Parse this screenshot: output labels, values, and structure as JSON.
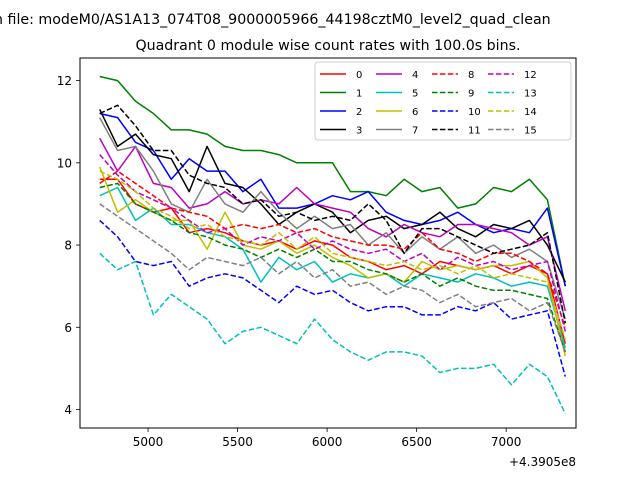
{
  "figure": {
    "suptitle": "n file: modeM0/AS1A13_074T08_9000005966_44198cztM0_level2_quad_clean",
    "title": "Quadrant 0 module wise count rates with 100.0s bins.",
    "offset_label": "+4.3905e8"
  },
  "chart_data": {
    "type": "line",
    "title": "Quadrant 0 module wise count rates with 100.0s bins.",
    "xlabel": "",
    "ylabel": "",
    "x_offset_text": "+4.3905e8",
    "xlim": [
      4620,
      7390
    ],
    "ylim": [
      3.55,
      12.55
    ],
    "xticks": [
      5000,
      5500,
      6000,
      6500,
      7000
    ],
    "yticks": [
      4,
      6,
      8,
      10,
      12
    ],
    "grid": false,
    "legend_position": "top-right",
    "legend_columns": 4,
    "x": [
      4730,
      4830,
      4930,
      5030,
      5130,
      5230,
      5330,
      5430,
      5530,
      5630,
      5730,
      5830,
      5930,
      6030,
      6130,
      6230,
      6330,
      6430,
      6530,
      6630,
      6730,
      6830,
      6930,
      7030,
      7130,
      7230,
      7330
    ],
    "series": [
      {
        "name": "0",
        "color": "#ff0000",
        "dash": "solid",
        "values": [
          9.6,
          9.6,
          9.0,
          8.8,
          8.9,
          8.3,
          8.4,
          8.3,
          8.1,
          8.0,
          8.1,
          7.9,
          8.1,
          8.0,
          7.7,
          7.6,
          7.4,
          7.5,
          7.3,
          7.6,
          7.5,
          7.4,
          7.5,
          7.3,
          7.5,
          7.3,
          5.6
        ]
      },
      {
        "name": "1",
        "color": "#008000",
        "dash": "solid",
        "values": [
          12.1,
          12.0,
          11.5,
          11.2,
          10.8,
          10.8,
          10.7,
          10.4,
          10.3,
          10.3,
          10.2,
          10.0,
          10.0,
          10.0,
          9.3,
          9.3,
          9.2,
          9.6,
          9.3,
          9.4,
          8.9,
          9.0,
          9.4,
          9.3,
          9.6,
          9.1,
          7.0
        ]
      },
      {
        "name": "2",
        "color": "#0000ff",
        "dash": "solid",
        "values": [
          11.2,
          11.1,
          10.5,
          10.3,
          9.6,
          10.1,
          9.8,
          9.8,
          9.3,
          9.6,
          8.9,
          8.9,
          9.0,
          9.2,
          9.1,
          9.3,
          8.8,
          8.6,
          8.5,
          8.6,
          8.8,
          8.5,
          8.3,
          8.4,
          8.3,
          8.9,
          7.0
        ]
      },
      {
        "name": "3",
        "color": "#000000",
        "dash": "solid",
        "values": [
          11.3,
          10.4,
          10.7,
          10.2,
          10.1,
          9.3,
          10.4,
          9.5,
          9.4,
          9.0,
          8.5,
          8.8,
          9.0,
          8.8,
          8.3,
          8.6,
          8.7,
          8.4,
          8.5,
          8.8,
          8.4,
          8.2,
          8.5,
          8.4,
          8.6,
          8.0,
          7.1
        ]
      },
      {
        "name": "4",
        "color": "#bf00bf",
        "dash": "solid",
        "values": [
          10.6,
          9.8,
          10.4,
          9.5,
          9.4,
          8.9,
          9.0,
          9.3,
          9.0,
          9.1,
          9.0,
          9.4,
          9.0,
          8.9,
          8.8,
          8.4,
          8.2,
          8.5,
          8.3,
          8.2,
          8.5,
          8.5,
          8.4,
          8.3,
          8.0,
          8.2,
          6.4
        ]
      },
      {
        "name": "5",
        "color": "#00bfbf",
        "dash": "solid",
        "values": [
          9.2,
          9.4,
          8.6,
          8.9,
          8.5,
          8.5,
          8.3,
          8.2,
          7.9,
          7.1,
          7.7,
          7.4,
          7.6,
          7.1,
          7.3,
          7.2,
          7.3,
          7.0,
          7.3,
          7.2,
          7.1,
          7.3,
          7.2,
          7.0,
          7.1,
          7.0,
          5.5
        ]
      },
      {
        "name": "6",
        "color": "#bfbf00",
        "dash": "solid",
        "values": [
          9.9,
          8.8,
          9.1,
          8.8,
          8.6,
          8.6,
          7.9,
          8.8,
          8.0,
          7.9,
          8.1,
          7.8,
          8.0,
          7.7,
          7.5,
          7.2,
          7.3,
          7.1,
          7.6,
          7.4,
          7.5,
          7.4,
          7.5,
          7.5,
          7.6,
          7.2,
          5.3
        ]
      },
      {
        "name": "7",
        "color": "#808080",
        "dash": "solid",
        "values": [
          11.1,
          10.3,
          10.4,
          9.8,
          9.0,
          8.8,
          9.6,
          9.0,
          8.8,
          9.3,
          8.8,
          8.4,
          8.7,
          8.4,
          8.5,
          8.0,
          8.3,
          7.8,
          8.2,
          7.9,
          8.2,
          7.8,
          8.0,
          7.7,
          7.9,
          7.6,
          6.2
        ]
      },
      {
        "name": "8",
        "color": "#ff0000",
        "dash": "dashed",
        "values": [
          9.5,
          9.8,
          9.5,
          9.2,
          8.9,
          8.8,
          8.7,
          8.4,
          8.5,
          8.4,
          8.5,
          8.3,
          8.4,
          8.2,
          8.1,
          8.0,
          8.0,
          7.9,
          8.3,
          7.9,
          7.8,
          7.6,
          7.8,
          7.8,
          7.6,
          7.3,
          6.0
        ]
      },
      {
        "name": "9",
        "color": "#008000",
        "dash": "dashed",
        "values": [
          9.4,
          9.5,
          9.0,
          8.8,
          8.6,
          8.3,
          8.2,
          8.0,
          7.9,
          7.7,
          7.9,
          7.7,
          7.9,
          7.6,
          7.6,
          7.4,
          7.3,
          7.1,
          7.3,
          7.0,
          7.2,
          7.0,
          6.9,
          6.9,
          6.8,
          6.7,
          5.4
        ]
      },
      {
        "name": "10",
        "color": "#0000ff",
        "dash": "dashed",
        "values": [
          8.6,
          8.2,
          7.6,
          7.5,
          7.6,
          7.0,
          7.2,
          7.3,
          7.2,
          6.9,
          6.6,
          7.0,
          6.8,
          6.9,
          6.6,
          6.4,
          6.5,
          6.5,
          6.3,
          6.3,
          6.5,
          6.4,
          6.6,
          6.2,
          6.3,
          6.4,
          4.8
        ]
      },
      {
        "name": "11",
        "color": "#000000",
        "dash": "dashed",
        "values": [
          11.2,
          11.4,
          10.9,
          10.3,
          10.3,
          9.7,
          9.5,
          9.4,
          9.0,
          9.1,
          8.7,
          8.8,
          8.6,
          8.7,
          8.6,
          9.0,
          8.6,
          7.8,
          8.4,
          8.4,
          8.2,
          8.0,
          7.8,
          7.9,
          8.0,
          8.3,
          6.1
        ]
      },
      {
        "name": "12",
        "color": "#bf00bf",
        "dash": "dashed",
        "values": [
          10.2,
          9.7,
          9.3,
          9.1,
          8.9,
          8.6,
          8.3,
          8.4,
          8.0,
          8.2,
          8.1,
          8.3,
          7.9,
          8.1,
          7.9,
          7.8,
          7.9,
          7.6,
          7.8,
          7.4,
          7.7,
          7.5,
          7.6,
          7.4,
          7.5,
          7.6,
          5.9
        ]
      },
      {
        "name": "13",
        "color": "#00bfbf",
        "dash": "dashed",
        "values": [
          7.8,
          7.4,
          7.6,
          6.3,
          6.8,
          6.5,
          6.2,
          5.6,
          5.9,
          6.0,
          5.8,
          5.6,
          6.2,
          5.7,
          5.4,
          5.2,
          5.4,
          5.4,
          5.3,
          4.9,
          5.0,
          5.0,
          5.1,
          4.6,
          5.1,
          4.8,
          3.9
        ]
      },
      {
        "name": "14",
        "color": "#bfbf00",
        "dash": "dashed",
        "values": [
          9.8,
          9.6,
          9.3,
          8.9,
          8.7,
          8.4,
          8.5,
          8.2,
          8.1,
          8.0,
          8.3,
          7.9,
          8.2,
          7.8,
          7.7,
          7.6,
          7.5,
          7.6,
          7.4,
          7.5,
          7.3,
          7.5,
          7.2,
          7.3,
          7.2,
          7.1,
          5.7
        ]
      },
      {
        "name": "15",
        "color": "#808080",
        "dash": "dashed",
        "values": [
          9.0,
          8.7,
          8.4,
          8.1,
          7.8,
          7.4,
          7.7,
          7.6,
          7.5,
          7.7,
          7.3,
          7.6,
          7.2,
          7.4,
          7.0,
          7.1,
          6.8,
          7.0,
          6.9,
          6.6,
          6.8,
          6.5,
          6.6,
          6.7,
          6.4,
          6.6,
          5.4
        ]
      }
    ]
  }
}
